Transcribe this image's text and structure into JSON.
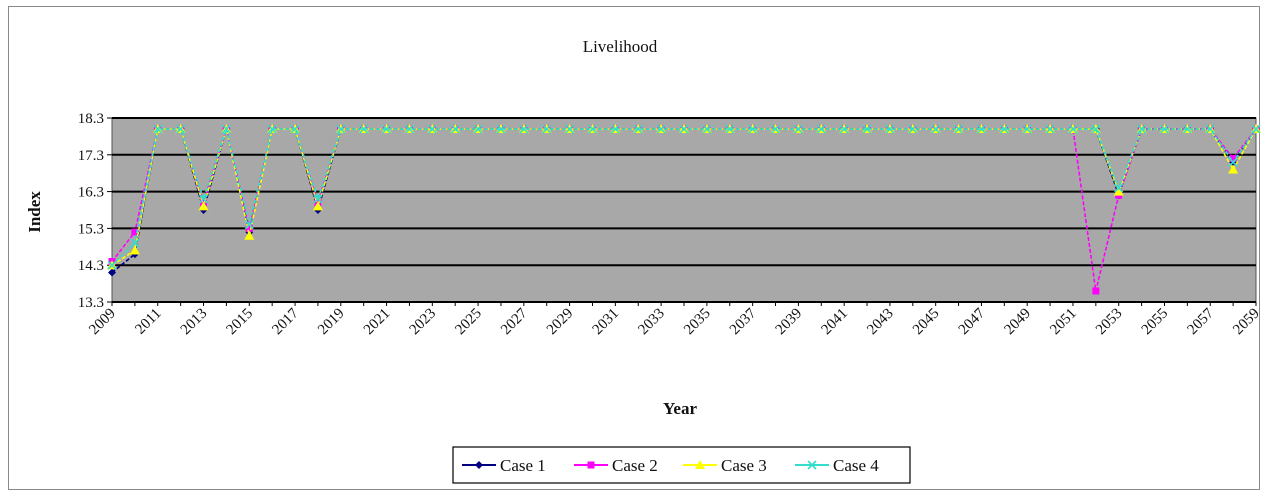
{
  "chart_data": {
    "type": "line",
    "title": "Livelihood",
    "xlabel": "Year",
    "ylabel": "Index",
    "xlim": [
      2009,
      2059
    ],
    "ylim": [
      13.3,
      18.3
    ],
    "y_ticks": [
      "13.3",
      "14.3",
      "15.3",
      "16.3",
      "17.3",
      "18.3"
    ],
    "x_tick_labels": [
      "2009",
      "2011",
      "2013",
      "2015",
      "2017",
      "2019",
      "2021",
      "2023",
      "2025",
      "2027",
      "2029",
      "2031",
      "2033",
      "2035",
      "2037",
      "2039",
      "2041",
      "2043",
      "2045",
      "2047",
      "2049",
      "2051",
      "2053",
      "2055",
      "2057",
      "2059"
    ],
    "grid": "horizontal",
    "plot_background": "#a8a8a8",
    "legend_position": "bottom",
    "x": [
      2009,
      2010,
      2011,
      2012,
      2013,
      2014,
      2015,
      2016,
      2017,
      2018,
      2019,
      2020,
      2021,
      2022,
      2023,
      2024,
      2025,
      2026,
      2027,
      2028,
      2029,
      2030,
      2031,
      2032,
      2033,
      2034,
      2035,
      2036,
      2037,
      2038,
      2039,
      2040,
      2041,
      2042,
      2043,
      2044,
      2045,
      2046,
      2047,
      2048,
      2049,
      2050,
      2051,
      2052,
      2053,
      2054,
      2055,
      2056,
      2057,
      2058,
      2059
    ],
    "series": [
      {
        "name": "Case 1",
        "color": "#000080",
        "marker": "diamond",
        "values": [
          14.1,
          14.6,
          18.0,
          18.0,
          15.8,
          18.0,
          15.2,
          18.0,
          18.0,
          15.8,
          18.0,
          18.0,
          18.0,
          18.0,
          18.0,
          18.0,
          18.0,
          18.0,
          18.0,
          18.0,
          18.0,
          18.0,
          18.0,
          18.0,
          18.0,
          18.0,
          18.0,
          18.0,
          18.0,
          18.0,
          18.0,
          18.0,
          18.0,
          18.0,
          18.0,
          18.0,
          18.0,
          18.0,
          18.0,
          18.0,
          18.0,
          18.0,
          18.0,
          18.0,
          16.2,
          18.0,
          18.0,
          18.0,
          18.0,
          17.1,
          18.0
        ]
      },
      {
        "name": "Case 2",
        "color": "#ff00ff",
        "marker": "square",
        "values": [
          14.4,
          15.2,
          18.0,
          18.0,
          16.0,
          18.0,
          15.3,
          18.0,
          18.0,
          16.0,
          18.0,
          18.0,
          18.0,
          18.0,
          18.0,
          18.0,
          18.0,
          18.0,
          18.0,
          18.0,
          18.0,
          18.0,
          18.0,
          18.0,
          18.0,
          18.0,
          18.0,
          18.0,
          18.0,
          18.0,
          18.0,
          18.0,
          18.0,
          18.0,
          18.0,
          18.0,
          18.0,
          18.0,
          18.0,
          18.0,
          18.0,
          18.0,
          18.0,
          13.6,
          16.2,
          18.0,
          18.0,
          18.0,
          18.0,
          17.2,
          18.0
        ]
      },
      {
        "name": "Case 3",
        "color": "#ffff00",
        "marker": "triangle",
        "values": [
          14.3,
          14.7,
          18.0,
          18.0,
          15.9,
          18.0,
          15.1,
          18.0,
          18.0,
          15.9,
          18.0,
          18.0,
          18.0,
          18.0,
          18.0,
          18.0,
          18.0,
          18.0,
          18.0,
          18.0,
          18.0,
          18.0,
          18.0,
          18.0,
          18.0,
          18.0,
          18.0,
          18.0,
          18.0,
          18.0,
          18.0,
          18.0,
          18.0,
          18.0,
          18.0,
          18.0,
          18.0,
          18.0,
          18.0,
          18.0,
          18.0,
          18.0,
          18.0,
          18.0,
          16.3,
          18.0,
          18.0,
          18.0,
          18.0,
          16.9,
          18.0
        ]
      },
      {
        "name": "Case 4",
        "color": "#33ddcc",
        "marker": "x",
        "values": [
          14.3,
          14.9,
          18.0,
          18.0,
          16.1,
          18.0,
          15.4,
          18.0,
          18.0,
          16.1,
          18.0,
          18.0,
          18.0,
          18.0,
          18.0,
          18.0,
          18.0,
          18.0,
          18.0,
          18.0,
          18.0,
          18.0,
          18.0,
          18.0,
          18.0,
          18.0,
          18.0,
          18.0,
          18.0,
          18.0,
          18.0,
          18.0,
          18.0,
          18.0,
          18.0,
          18.0,
          18.0,
          18.0,
          18.0,
          18.0,
          18.0,
          18.0,
          18.0,
          18.0,
          16.4,
          18.0,
          18.0,
          18.0,
          18.0,
          17.1,
          18.0
        ]
      }
    ]
  }
}
